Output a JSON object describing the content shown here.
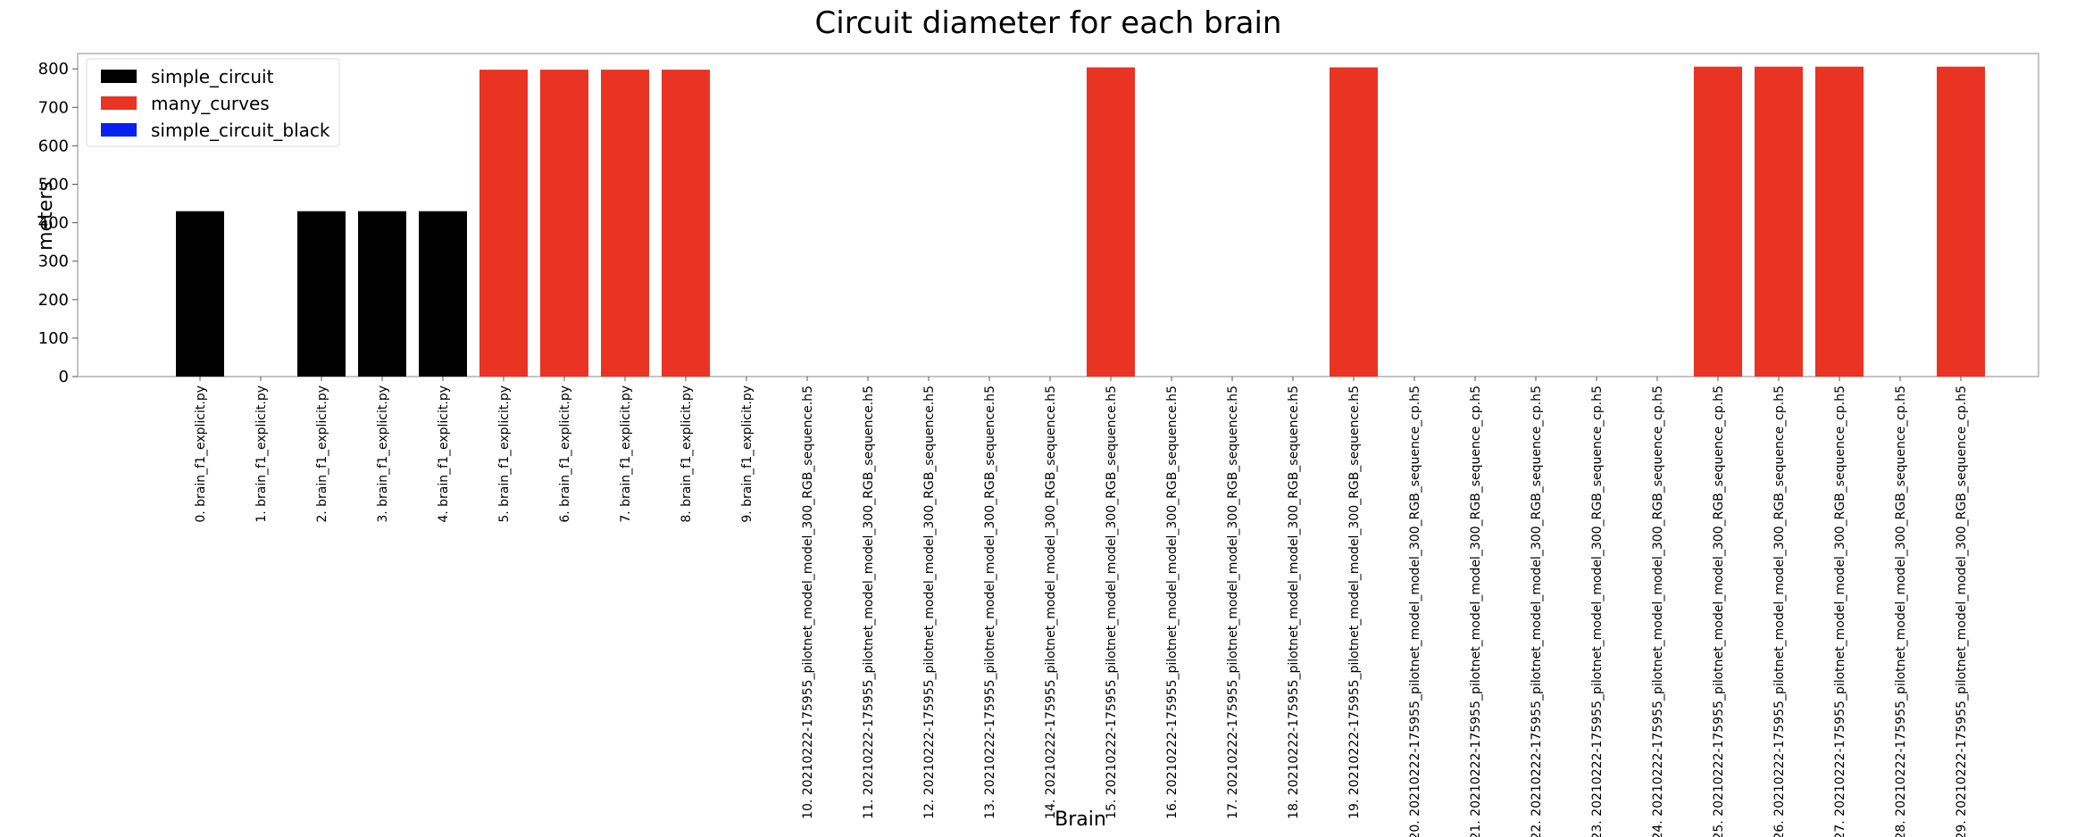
{
  "chart_data": {
    "type": "bar",
    "title": "Circuit diameter for each brain",
    "xlabel": "Brain",
    "ylabel": "meters",
    "ylim": [
      0,
      840
    ],
    "yticks": [
      0,
      100,
      200,
      300,
      400,
      500,
      600,
      700,
      800
    ],
    "grid": false,
    "legend_position": "top-left",
    "categories": [
      "0. brain_f1_explicit.py",
      "1. brain_f1_explicit.py",
      "2. brain_f1_explicit.py",
      "3. brain_f1_explicit.py",
      "4. brain_f1_explicit.py",
      "5. brain_f1_explicit.py",
      "6. brain_f1_explicit.py",
      "7. brain_f1_explicit.py",
      "8. brain_f1_explicit.py",
      "9. brain_f1_explicit.py",
      "10. 20210222-175955_pilotnet_model_model_300_RGB_sequence.h5",
      "11. 20210222-175955_pilotnet_model_model_300_RGB_sequence.h5",
      "12. 20210222-175955_pilotnet_model_model_300_RGB_sequence.h5",
      "13. 20210222-175955_pilotnet_model_model_300_RGB_sequence.h5",
      "14. 20210222-175955_pilotnet_model_model_300_RGB_sequence.h5",
      "15. 20210222-175955_pilotnet_model_model_300_RGB_sequence.h5",
      "16. 20210222-175955_pilotnet_model_model_300_RGB_sequence.h5",
      "17. 20210222-175955_pilotnet_model_model_300_RGB_sequence.h5",
      "18. 20210222-175955_pilotnet_model_model_300_RGB_sequence.h5",
      "19. 20210222-175955_pilotnet_model_model_300_RGB_sequence.h5",
      "20. 20210222-175955_pilotnet_model_model_300_RGB_sequence_cp.h5",
      "21. 20210222-175955_pilotnet_model_model_300_RGB_sequence_cp.h5",
      "22. 20210222-175955_pilotnet_model_model_300_RGB_sequence_cp.h5",
      "23. 20210222-175955_pilotnet_model_model_300_RGB_sequence_cp.h5",
      "24. 20210222-175955_pilotnet_model_model_300_RGB_sequence_cp.h5",
      "25. 20210222-175955_pilotnet_model_model_300_RGB_sequence_cp.h5",
      "26. 20210222-175955_pilotnet_model_model_300_RGB_sequence_cp.h5",
      "27. 20210222-175955_pilotnet_model_model_300_RGB_sequence_cp.h5",
      "28. 20210222-175955_pilotnet_model_model_300_RGB_sequence_cp.h5",
      "29. 20210222-175955_pilotnet_model_model_300_RGB_sequence_cp.h5"
    ],
    "values": [
      430,
      0,
      430,
      430,
      430,
      798,
      798,
      798,
      798,
      0,
      0,
      0,
      0,
      0,
      0,
      804,
      0,
      0,
      0,
      804,
      0,
      0,
      0,
      0,
      0,
      806,
      806,
      806,
      0,
      806
    ],
    "bar_series": [
      0,
      0,
      0,
      0,
      0,
      1,
      1,
      1,
      1,
      1,
      2,
      2,
      2,
      2,
      2,
      1,
      2,
      2,
      2,
      1,
      2,
      2,
      2,
      2,
      2,
      1,
      1,
      1,
      2,
      1
    ],
    "legend": [
      {
        "name": "simple_circuit",
        "color": "#000000"
      },
      {
        "name": "many_curves",
        "color": "#e93323"
      },
      {
        "name": "simple_circuit_black",
        "color": "#0722f5"
      }
    ],
    "colors": {
      "axis": "#b0b0b0",
      "background": "#ffffff"
    }
  }
}
